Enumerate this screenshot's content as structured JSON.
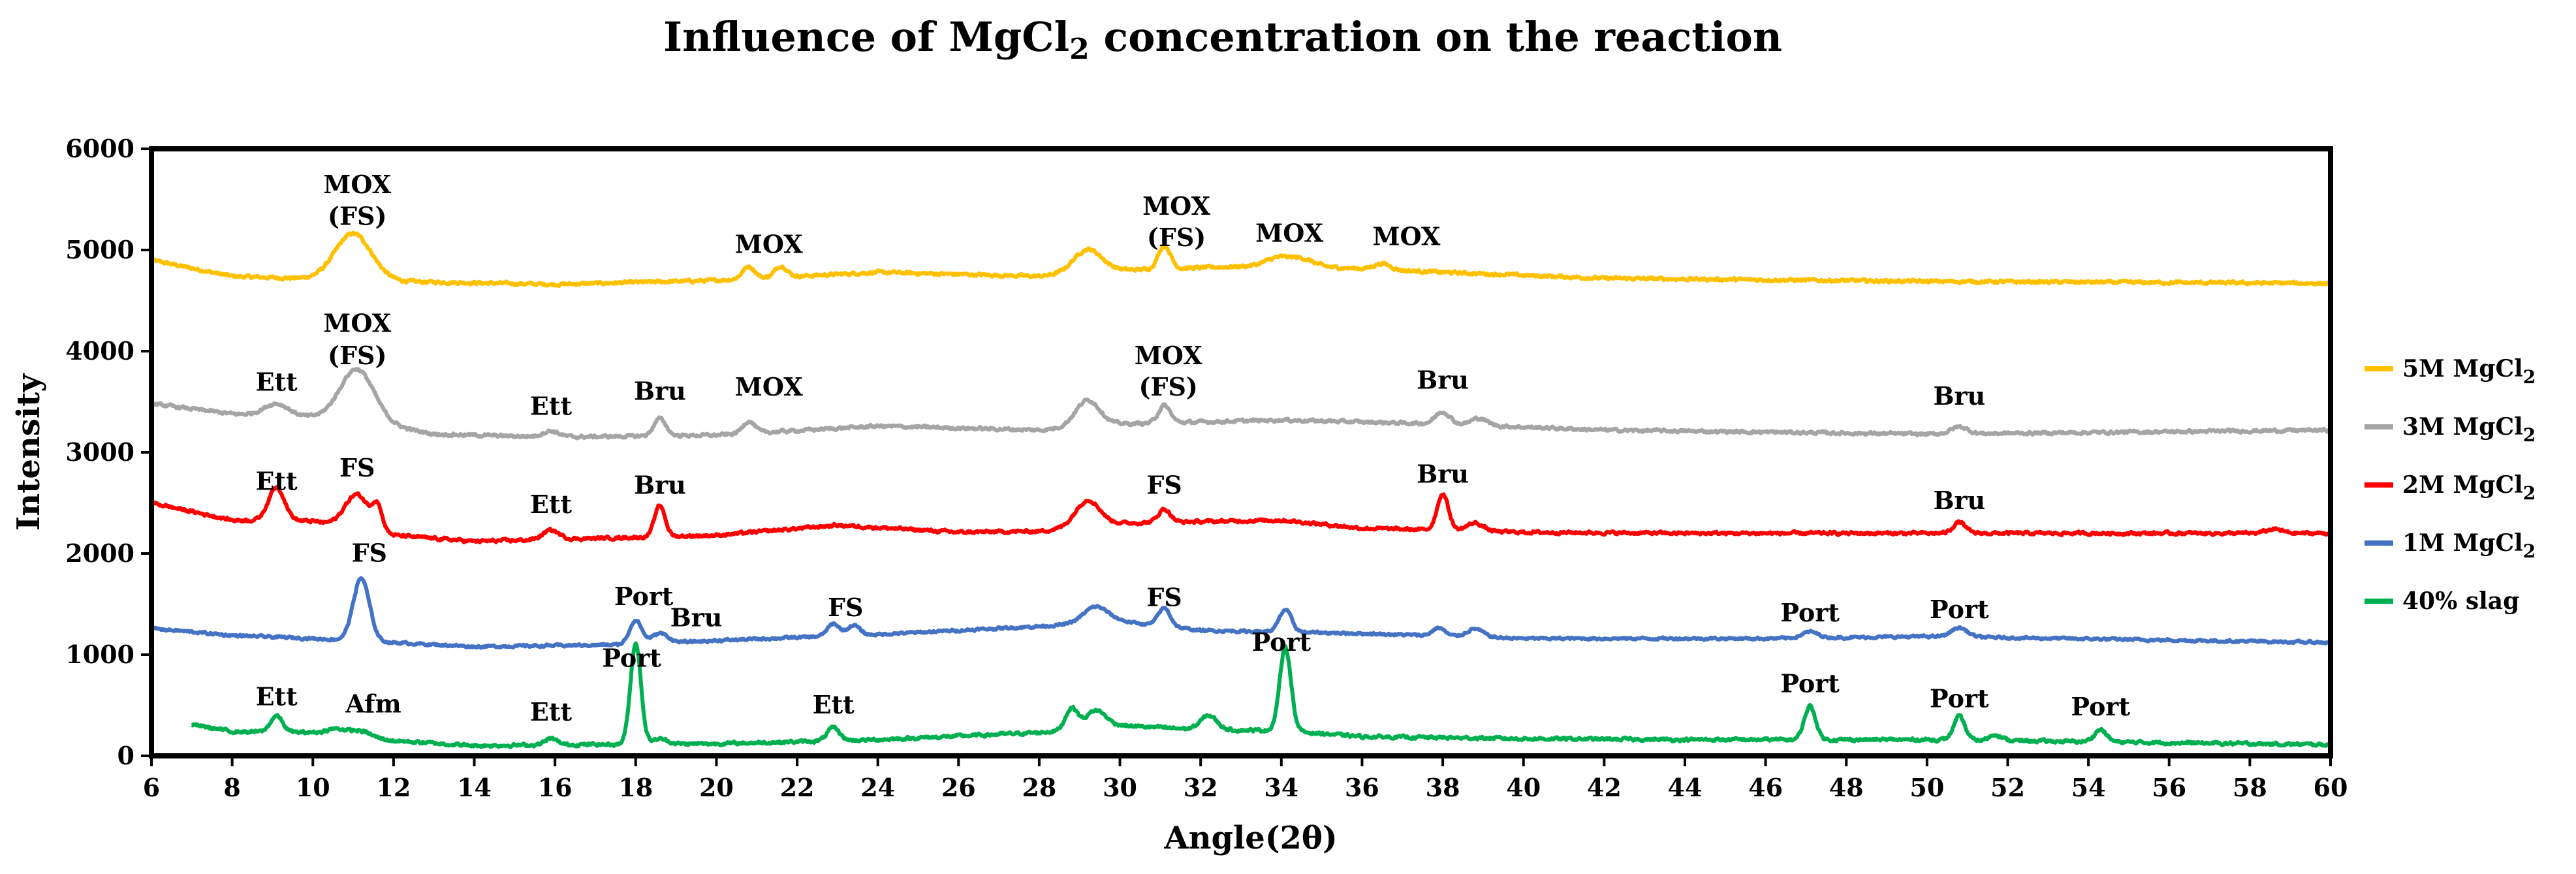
{
  "chart_data": {
    "type": "line",
    "title": "Influence of MgCl",
    "title_sub": "2",
    "title_rest": " concentration on the reaction",
    "xlabel": "Angle(2θ)",
    "ylabel": "Intensity",
    "xlim": [
      6,
      60
    ],
    "ylim": [
      0,
      6000
    ],
    "xticks": [
      6,
      8,
      10,
      12,
      14,
      16,
      18,
      20,
      22,
      24,
      26,
      28,
      30,
      32,
      34,
      36,
      38,
      40,
      42,
      44,
      46,
      48,
      50,
      52,
      54,
      56,
      58,
      60
    ],
    "yticks": [
      0,
      1000,
      2000,
      3000,
      4000,
      5000,
      6000
    ],
    "grid": false,
    "legend_position": "right",
    "series": [
      {
        "name": "5M MgCl",
        "name_sub": "2",
        "color": "#FFC000",
        "x_start": 6,
        "x_end": 60,
        "baseline": [
          [
            6,
            4900
          ],
          [
            8,
            4740
          ],
          [
            12,
            4690
          ],
          [
            16,
            4660
          ],
          [
            20,
            4700
          ],
          [
            24,
            4780
          ],
          [
            28,
            4740
          ],
          [
            30,
            4800
          ],
          [
            34,
            4850
          ],
          [
            38,
            4780
          ],
          [
            42,
            4720
          ],
          [
            50,
            4690
          ],
          [
            60,
            4670
          ]
        ],
        "peaks": [
          [
            11.0,
            460,
            0.45
          ],
          [
            20.8,
            120,
            0.15
          ],
          [
            21.6,
            110,
            0.15
          ],
          [
            29.2,
            230,
            0.35
          ],
          [
            31.1,
            230,
            0.15
          ],
          [
            33.9,
            70,
            0.3
          ],
          [
            34.5,
            70,
            0.3
          ],
          [
            36.5,
            60,
            0.2
          ]
        ],
        "noise": 25
      },
      {
        "name": "3M MgCl",
        "name_sub": "2",
        "color": "#A5A5A5",
        "x_start": 6,
        "x_end": 60,
        "baseline": [
          [
            6,
            3480
          ],
          [
            8,
            3380
          ],
          [
            11,
            3330
          ],
          [
            13,
            3180
          ],
          [
            16,
            3150
          ],
          [
            20,
            3170
          ],
          [
            24,
            3260
          ],
          [
            28,
            3220
          ],
          [
            30,
            3280
          ],
          [
            34,
            3320
          ],
          [
            38,
            3280
          ],
          [
            42,
            3220
          ],
          [
            50,
            3180
          ],
          [
            60,
            3220
          ]
        ],
        "peaks": [
          [
            9.1,
            120,
            0.3
          ],
          [
            11.1,
            500,
            0.42
          ],
          [
            15.9,
            60,
            0.2
          ],
          [
            18.6,
            170,
            0.15
          ],
          [
            20.8,
            120,
            0.15
          ],
          [
            29.2,
            260,
            0.3
          ],
          [
            31.1,
            170,
            0.15
          ],
          [
            38.0,
            120,
            0.18
          ],
          [
            38.9,
            70,
            0.2
          ],
          [
            50.8,
            70,
            0.2
          ]
        ],
        "noise": 25
      },
      {
        "name": "2M MgCl",
        "name_sub": "2",
        "color": "#FF0000",
        "x_start": 6,
        "x_end": 60,
        "baseline": [
          [
            6,
            2500
          ],
          [
            8,
            2330
          ],
          [
            10,
            2320
          ],
          [
            12,
            2180
          ],
          [
            14,
            2120
          ],
          [
            18,
            2160
          ],
          [
            20,
            2180
          ],
          [
            23,
            2280
          ],
          [
            26,
            2210
          ],
          [
            28,
            2220
          ],
          [
            30,
            2300
          ],
          [
            34,
            2330
          ],
          [
            36,
            2250
          ],
          [
            40,
            2210
          ],
          [
            44,
            2200
          ],
          [
            50,
            2200
          ],
          [
            60,
            2200
          ]
        ],
        "peaks": [
          [
            9.1,
            330,
            0.2
          ],
          [
            11.1,
            340,
            0.3
          ],
          [
            11.6,
            220,
            0.12
          ],
          [
            15.9,
            90,
            0.2
          ],
          [
            18.6,
            310,
            0.13
          ],
          [
            29.2,
            260,
            0.3
          ],
          [
            31.1,
            130,
            0.15
          ],
          [
            38.0,
            360,
            0.14
          ],
          [
            38.8,
            80,
            0.2
          ],
          [
            50.8,
            110,
            0.15
          ],
          [
            58.6,
            40,
            0.2
          ]
        ],
        "noise": 25
      },
      {
        "name": "1M MgCl",
        "name_sub": "2",
        "color": "#4472C4",
        "x_start": 6,
        "x_end": 60,
        "baseline": [
          [
            6,
            1260
          ],
          [
            8,
            1190
          ],
          [
            10,
            1160
          ],
          [
            12,
            1120
          ],
          [
            14,
            1080
          ],
          [
            18,
            1100
          ],
          [
            20,
            1140
          ],
          [
            24,
            1200
          ],
          [
            28,
            1280
          ],
          [
            30,
            1330
          ],
          [
            32,
            1240
          ],
          [
            36,
            1210
          ],
          [
            40,
            1160
          ],
          [
            46,
            1160
          ],
          [
            50,
            1180
          ],
          [
            60,
            1120
          ]
        ],
        "peaks": [
          [
            11.2,
            620,
            0.2
          ],
          [
            18.0,
            240,
            0.15
          ],
          [
            18.6,
            100,
            0.2
          ],
          [
            22.9,
            120,
            0.15
          ],
          [
            23.4,
            100,
            0.15
          ],
          [
            29.4,
            160,
            0.3
          ],
          [
            31.1,
            180,
            0.15
          ],
          [
            34.1,
            220,
            0.15
          ],
          [
            37.9,
            80,
            0.15
          ],
          [
            38.8,
            80,
            0.2
          ],
          [
            47.1,
            60,
            0.2
          ],
          [
            50.8,
            90,
            0.2
          ]
        ],
        "noise": 20
      },
      {
        "name": "40% slag",
        "name_sub": "",
        "color": "#00B050",
        "x_start": 7,
        "x_end": 60,
        "baseline": [
          [
            7,
            310
          ],
          [
            8,
            240
          ],
          [
            10,
            230
          ],
          [
            12,
            150
          ],
          [
            14,
            100
          ],
          [
            16,
            110
          ],
          [
            20,
            120
          ],
          [
            24,
            160
          ],
          [
            28,
            230
          ],
          [
            30,
            300
          ],
          [
            32,
            260
          ],
          [
            34,
            250
          ],
          [
            36,
            190
          ],
          [
            40,
            170
          ],
          [
            44,
            160
          ],
          [
            50,
            160
          ],
          [
            60,
            110
          ]
        ],
        "peaks": [
          [
            9.1,
            160,
            0.15
          ],
          [
            10.6,
            60,
            0.25
          ],
          [
            11.2,
            60,
            0.25
          ],
          [
            15.9,
            60,
            0.15
          ],
          [
            18.0,
            1000,
            0.13
          ],
          [
            18.6,
            50,
            0.2
          ],
          [
            22.9,
            130,
            0.15
          ],
          [
            28.8,
            210,
            0.15
          ],
          [
            29.4,
            170,
            0.25
          ],
          [
            32.2,
            140,
            0.2
          ],
          [
            34.1,
            820,
            0.14
          ],
          [
            47.1,
            330,
            0.14
          ],
          [
            50.8,
            230,
            0.14
          ],
          [
            51.7,
            60,
            0.15
          ],
          [
            54.3,
            120,
            0.15
          ]
        ],
        "noise": 25
      }
    ],
    "annotations": [
      {
        "text": "MOX",
        "x": 11.1,
        "y": 5560
      },
      {
        "text": "(FS)",
        "x": 11.1,
        "y": 5250
      },
      {
        "text": "MOX",
        "x": 21.3,
        "y": 4970
      },
      {
        "text": "MOX",
        "x": 31.4,
        "y": 5350
      },
      {
        "text": "(FS)",
        "x": 31.4,
        "y": 5040
      },
      {
        "text": "MOX",
        "x": 34.2,
        "y": 5080
      },
      {
        "text": "MOX",
        "x": 37.1,
        "y": 5050
      },
      {
        "text": "MOX",
        "x": 11.1,
        "y": 4190
      },
      {
        "text": "(FS)",
        "x": 11.1,
        "y": 3870
      },
      {
        "text": "Ett",
        "x": 9.1,
        "y": 3610
      },
      {
        "text": "Ett",
        "x": 15.9,
        "y": 3370
      },
      {
        "text": "Bru",
        "x": 18.6,
        "y": 3520
      },
      {
        "text": "MOX",
        "x": 21.3,
        "y": 3560
      },
      {
        "text": "MOX",
        "x": 31.2,
        "y": 3870
      },
      {
        "text": "(FS)",
        "x": 31.2,
        "y": 3560
      },
      {
        "text": "Bru",
        "x": 38.0,
        "y": 3630
      },
      {
        "text": "Bru",
        "x": 50.8,
        "y": 3470
      },
      {
        "text": "Ett",
        "x": 9.1,
        "y": 2630
      },
      {
        "text": "FS",
        "x": 11.1,
        "y": 2760
      },
      {
        "text": "Ett",
        "x": 15.9,
        "y": 2400
      },
      {
        "text": "Bru",
        "x": 18.6,
        "y": 2590
      },
      {
        "text": "FS",
        "x": 31.1,
        "y": 2590
      },
      {
        "text": "Bru",
        "x": 38.0,
        "y": 2700
      },
      {
        "text": "Bru",
        "x": 50.8,
        "y": 2440
      },
      {
        "text": "FS",
        "x": 11.4,
        "y": 1920
      },
      {
        "text": "Port",
        "x": 18.2,
        "y": 1490
      },
      {
        "text": "Bru",
        "x": 19.5,
        "y": 1280
      },
      {
        "text": "FS",
        "x": 23.2,
        "y": 1380
      },
      {
        "text": "FS",
        "x": 31.1,
        "y": 1480
      },
      {
        "text": "Port",
        "x": 47.1,
        "y": 1330
      },
      {
        "text": "Port",
        "x": 50.8,
        "y": 1360
      },
      {
        "text": "Port",
        "x": 17.9,
        "y": 880
      },
      {
        "text": "Port",
        "x": 34.0,
        "y": 1040
      },
      {
        "text": "Ett",
        "x": 9.1,
        "y": 500
      },
      {
        "text": "Afm",
        "x": 11.5,
        "y": 430
      },
      {
        "text": "Ett",
        "x": 15.9,
        "y": 350
      },
      {
        "text": "Ett",
        "x": 22.9,
        "y": 420
      },
      {
        "text": "Port",
        "x": 47.1,
        "y": 630
      },
      {
        "text": "Port",
        "x": 50.8,
        "y": 480
      },
      {
        "text": "Port",
        "x": 54.3,
        "y": 400
      }
    ]
  }
}
